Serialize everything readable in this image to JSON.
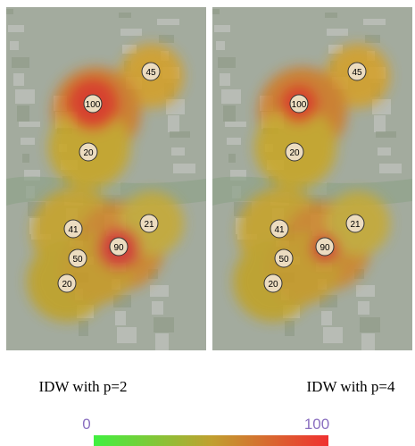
{
  "panels": [
    {
      "caption": "IDW with p=2",
      "points": [
        {
          "label": 45
        },
        {
          "label": 100
        },
        {
          "label": 20
        },
        {
          "label": 41
        },
        {
          "label": 90
        },
        {
          "label": 21
        },
        {
          "label": 50
        },
        {
          "label": 20
        }
      ]
    },
    {
      "caption": "IDW with p=4",
      "points": [
        {
          "label": 45
        },
        {
          "label": 100
        },
        {
          "label": 20
        },
        {
          "label": 41
        },
        {
          "label": 90
        },
        {
          "label": 21
        },
        {
          "label": 50
        },
        {
          "label": 20
        }
      ]
    }
  ],
  "colorbar": {
    "min": 0,
    "max": 100
  }
}
